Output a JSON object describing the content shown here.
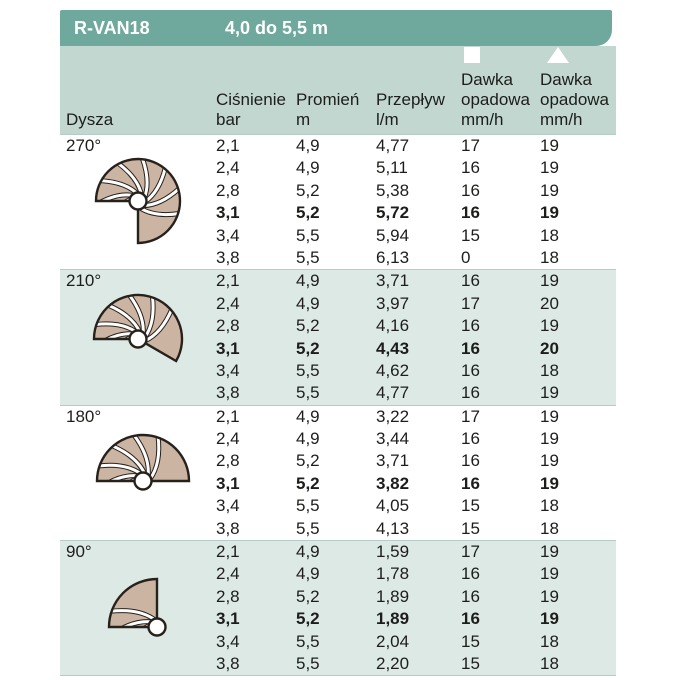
{
  "title_bar": {
    "model": "R-VAN18",
    "range": "4,0 do 5,5 m"
  },
  "header": {
    "dysza": "Dysza",
    "cisnienie_l1": "Ciśnienie",
    "cisnienie_l2": "bar",
    "promien_l1": "Promień",
    "promien_l2": "m",
    "przeplyw_l1": "Przepływ",
    "przeplyw_l2": "l/m",
    "dawka_sq": {
      "icon": "square-icon",
      "l1": "Dawka",
      "l2": "opadowa",
      "l3": "mm/h"
    },
    "dawka_tr": {
      "icon": "triangle-icon",
      "l1": "Dawka",
      "l2": "opadowa",
      "l3": "mm/h"
    }
  },
  "colors": {
    "bar_teal": "#6fa89d",
    "band_teal": "#c1d7d0",
    "tint_row": "#dde9e5",
    "divider": "#b7ccc6",
    "text": "#1d1d1b",
    "blade_tan": "#ccb4a3",
    "outline": "#27211c"
  },
  "sections": [
    {
      "angle": "270°",
      "arc": 270,
      "tinted": false,
      "bold_row": 3,
      "rows": [
        [
          "2,1",
          "4,9",
          "4,77",
          "17",
          "19"
        ],
        [
          "2,4",
          "4,9",
          "5,11",
          "16",
          "19"
        ],
        [
          "2,8",
          "5,2",
          "5,38",
          "16",
          "19"
        ],
        [
          "3,1",
          "5,2",
          "5,72",
          "16",
          "19"
        ],
        [
          "3,4",
          "5,5",
          "5,94",
          "15",
          "18"
        ],
        [
          "3,8",
          "5,5",
          "6,13",
          "0",
          "18"
        ]
      ]
    },
    {
      "angle": "210°",
      "arc": 210,
      "tinted": true,
      "bold_row": 3,
      "rows": [
        [
          "2,1",
          "4,9",
          "3,71",
          "16",
          "19"
        ],
        [
          "2,4",
          "4,9",
          "3,97",
          "17",
          "20"
        ],
        [
          "2,8",
          "5,2",
          "4,16",
          "16",
          "19"
        ],
        [
          "3,1",
          "5,2",
          "4,43",
          "16",
          "20"
        ],
        [
          "3,4",
          "5,5",
          "4,62",
          "16",
          "18"
        ],
        [
          "3,8",
          "5,5",
          "4,77",
          "16",
          "19"
        ]
      ]
    },
    {
      "angle": "180°",
      "arc": 180,
      "tinted": false,
      "bold_row": 3,
      "rows": [
        [
          "2,1",
          "4,9",
          "3,22",
          "17",
          "19"
        ],
        [
          "2,4",
          "4,9",
          "3,44",
          "16",
          "19"
        ],
        [
          "2,8",
          "5,2",
          "3,71",
          "16",
          "19"
        ],
        [
          "3,1",
          "5,2",
          "3,82",
          "16",
          "19"
        ],
        [
          "3,4",
          "5,5",
          "4,05",
          "15",
          "18"
        ],
        [
          "3,8",
          "5,5",
          "4,13",
          "15",
          "18"
        ]
      ]
    },
    {
      "angle": "90°",
      "arc": 90,
      "tinted": true,
      "bold_row": 3,
      "rows": [
        [
          "2,1",
          "4,9",
          "1,59",
          "17",
          "19"
        ],
        [
          "2,4",
          "4,9",
          "1,78",
          "16",
          "19"
        ],
        [
          "2,8",
          "5,2",
          "1,89",
          "16",
          "19"
        ],
        [
          "3,1",
          "5,2",
          "1,89",
          "16",
          "19"
        ],
        [
          "3,4",
          "5,5",
          "2,04",
          "15",
          "18"
        ],
        [
          "3,8",
          "5,5",
          "2,20",
          "15",
          "18"
        ]
      ]
    }
  ]
}
